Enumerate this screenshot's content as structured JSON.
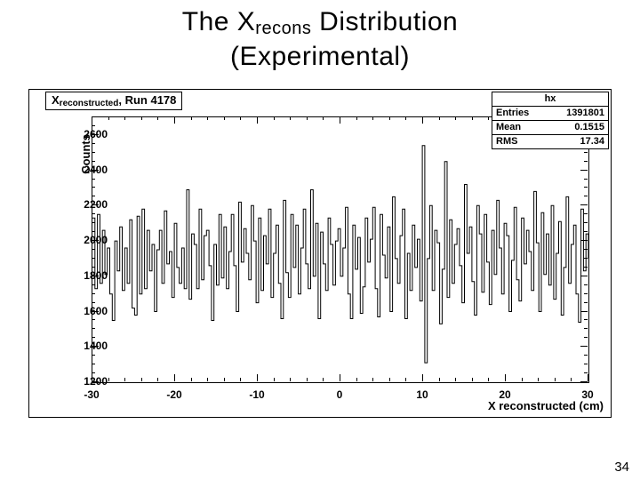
{
  "title_main": "The X",
  "title_sub": "recons",
  "title_rest": " Distribution",
  "title_line2": "(Experimental)",
  "page_number": "34",
  "chart": {
    "type": "line",
    "title_prefix": "X",
    "title_sub": "reconstructed",
    "title_suffix": ", Run 4178",
    "stats_header": "hx",
    "stats": [
      {
        "label": "Entries",
        "value": "1391801"
      },
      {
        "label": "Mean",
        "value": "0.1515"
      },
      {
        "label": "RMS",
        "value": "17.34"
      }
    ],
    "xlabel": "X reconstructed (cm)",
    "ylabel": "Counts",
    "xlim": [
      -30,
      30
    ],
    "ylim": [
      1200,
      2700
    ],
    "xtick_step": 10,
    "ytick_step": 200,
    "ytick_first_label": 1200,
    "xticks": [
      -30,
      -20,
      -10,
      0,
      10,
      20,
      30
    ],
    "yticks": [
      1200,
      1400,
      1600,
      1800,
      2000,
      2200,
      2400,
      2600
    ],
    "line_color": "#000000",
    "line_width": 1,
    "background_color": "#ffffff",
    "frame_color": "#000000",
    "x": [
      -30.0,
      -29.7,
      -29.4,
      -29.1,
      -28.8,
      -28.5,
      -28.2,
      -27.9,
      -27.6,
      -27.3,
      -27.0,
      -26.7,
      -26.4,
      -26.1,
      -25.8,
      -25.5,
      -25.2,
      -24.9,
      -24.6,
      -24.3,
      -24.0,
      -23.7,
      -23.4,
      -23.1,
      -22.8,
      -22.5,
      -22.2,
      -21.9,
      -21.6,
      -21.3,
      -21.0,
      -20.7,
      -20.4,
      -20.1,
      -19.8,
      -19.5,
      -19.2,
      -18.9,
      -18.6,
      -18.3,
      -18.0,
      -17.7,
      -17.4,
      -17.1,
      -16.8,
      -16.5,
      -16.2,
      -15.9,
      -15.6,
      -15.3,
      -15.0,
      -14.7,
      -14.4,
      -14.1,
      -13.8,
      -13.5,
      -13.2,
      -12.9,
      -12.6,
      -12.3,
      -12.0,
      -11.7,
      -11.4,
      -11.1,
      -10.8,
      -10.5,
      -10.2,
      -9.9,
      -9.6,
      -9.3,
      -9.0,
      -8.7,
      -8.4,
      -8.1,
      -7.8,
      -7.5,
      -7.2,
      -6.9,
      -6.6,
      -6.3,
      -6.0,
      -5.7,
      -5.4,
      -5.1,
      -4.8,
      -4.5,
      -4.2,
      -3.9,
      -3.6,
      -3.3,
      -3.0,
      -2.7,
      -2.4,
      -2.1,
      -1.8,
      -1.5,
      -1.2,
      -0.9,
      -0.6,
      -0.3,
      0.0,
      0.3,
      0.6,
      0.9,
      1.2,
      1.5,
      1.8,
      2.1,
      2.4,
      2.7,
      3.0,
      3.3,
      3.6,
      3.9,
      4.2,
      4.5,
      4.8,
      5.1,
      5.4,
      5.7,
      6.0,
      6.3,
      6.6,
      6.9,
      7.2,
      7.5,
      7.8,
      8.1,
      8.4,
      8.7,
      9.0,
      9.3,
      9.6,
      9.9,
      10.2,
      10.5,
      10.8,
      11.1,
      11.4,
      11.7,
      12.0,
      12.3,
      12.6,
      12.9,
      13.2,
      13.5,
      13.8,
      14.1,
      14.4,
      14.7,
      15.0,
      15.3,
      15.6,
      15.9,
      16.2,
      16.5,
      16.8,
      17.1,
      17.4,
      17.7,
      18.0,
      18.3,
      18.6,
      18.9,
      19.2,
      19.5,
      19.8,
      20.1,
      20.4,
      20.7,
      21.0,
      21.3,
      21.6,
      21.9,
      22.2,
      22.5,
      22.8,
      23.1,
      23.4,
      23.7,
      24.0,
      24.3,
      24.6,
      24.9,
      25.2,
      25.5,
      25.8,
      26.1,
      26.4,
      26.7,
      27.0,
      27.3,
      27.6,
      27.9,
      28.2,
      28.5,
      28.8,
      29.1,
      29.4,
      29.7,
      30.0
    ],
    "y": [
      2130,
      1730,
      2150,
      1760,
      2060,
      1810,
      1960,
      1700,
      1550,
      2000,
      1830,
      2080,
      1720,
      1960,
      1760,
      2120,
      1620,
      1580,
      2140,
      1700,
      2180,
      1730,
      2060,
      1830,
      1980,
      1600,
      1950,
      2060,
      1760,
      2170,
      1870,
      1940,
      1680,
      2100,
      1850,
      1760,
      1960,
      1730,
      2290,
      1670,
      2040,
      1980,
      1730,
      2180,
      1780,
      2030,
      2060,
      1860,
      1550,
      1980,
      1750,
      2150,
      1790,
      2080,
      1730,
      1940,
      2150,
      1860,
      1600,
      2220,
      1880,
      2070,
      1930,
      1780,
      2200,
      2000,
      1650,
      2130,
      1720,
      2030,
      1870,
      2180,
      1680,
      1930,
      2090,
      1760,
      1560,
      2230,
      1820,
      1680,
      2150,
      1850,
      2090,
      1700,
      1960,
      2180,
      1870,
      1730,
      2290,
      1800,
      2100,
      1560,
      2050,
      1870,
      1720,
      2130,
      1980,
      1750,
      2000,
      2070,
      1800,
      1960,
      2190,
      1700,
      1560,
      2090,
      1840,
      2020,
      1590,
      1740,
      2130,
      1880,
      2010,
      2190,
      1730,
      1570,
      2150,
      1920,
      1790,
      2080,
      1600,
      2250,
      1900,
      1760,
      2030,
      2180,
      1560,
      1930,
      1720,
      2090,
      1850,
      2010,
      1660,
      2540,
      1310,
      1900,
      2200,
      1720,
      2060,
      1990,
      1530,
      1840,
      2450,
      1680,
      2120,
      1760,
      1980,
      2070,
      1860,
      1650,
      2320,
      1930,
      2080,
      1770,
      1580,
      2200,
      2040,
      1710,
      2150,
      1880,
      1640,
      2060,
      1810,
      2230,
      1960,
      1700,
      2100,
      2030,
      1600,
      1890,
      2190,
      1780,
      1660,
      2130,
      1870,
      2060,
      1940,
      1720,
      2280,
      1990,
      1600,
      2160,
      1810,
      2040,
      1750,
      2200,
      1670,
      1930,
      2110,
      1580,
      1850,
      2250,
      1760,
      1980,
      2090,
      1700,
      1540,
      2180,
      1830,
      2040,
      1900
    ]
  }
}
